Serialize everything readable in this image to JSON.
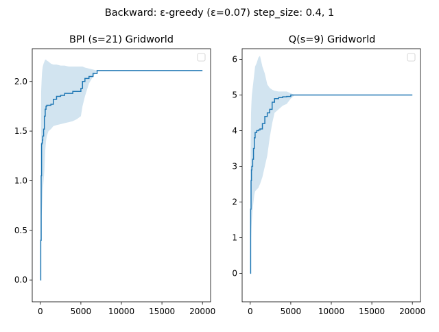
{
  "figure": {
    "suptitle": "Backward: ε-greedy (ε=0.07) step_size: 0.4, 1"
  },
  "colors": {
    "line": "#1f77b4",
    "band": "#1f77b4",
    "axes": "#000000",
    "background": "#ffffff"
  },
  "chart_data": [
    {
      "type": "line",
      "title": "BPI (s=21) Gridworld",
      "xlabel": "",
      "ylabel": "",
      "xlim": [
        -1000,
        21000
      ],
      "ylim": [
        -0.22,
        2.33
      ],
      "xticks": [
        0,
        5000,
        10000,
        15000,
        20000
      ],
      "yticks": [
        0.0,
        0.5,
        1.0,
        1.5,
        2.0
      ],
      "xtick_labels": [
        "0",
        "5000",
        "10000",
        "15000",
        "20000"
      ],
      "ytick_labels": [
        "0.0",
        "0.5",
        "1.0",
        "1.5",
        "2.0"
      ],
      "legend": "top-right (empty)",
      "grid": false,
      "series": [
        {
          "x": [
            0,
            50,
            100,
            150,
            200,
            250,
            300,
            400,
            500,
            600,
            700,
            800,
            1000,
            1300,
            1600,
            2000,
            2500,
            3000,
            3500,
            4000,
            4500,
            5000,
            5200,
            5500,
            6000,
            6500,
            7000,
            8000,
            10000,
            12000,
            15000,
            18000,
            20000
          ],
          "y": [
            0.0,
            0.4,
            1.05,
            1.37,
            1.38,
            1.41,
            1.45,
            1.52,
            1.65,
            1.72,
            1.75,
            1.76,
            1.76,
            1.77,
            1.82,
            1.85,
            1.86,
            1.88,
            1.88,
            1.9,
            1.9,
            1.93,
            2.0,
            2.03,
            2.05,
            2.08,
            2.11,
            2.11,
            2.11,
            2.11,
            2.11,
            2.11,
            2.11
          ],
          "lower": [
            0.0,
            0.3,
            0.58,
            0.65,
            0.72,
            0.8,
            0.9,
            1.0,
            1.1,
            1.3,
            1.4,
            1.45,
            1.5,
            1.52,
            1.55,
            1.56,
            1.57,
            1.58,
            1.59,
            1.6,
            1.62,
            1.65,
            1.75,
            1.85,
            1.98,
            2.05,
            2.11,
            2.11,
            2.11,
            2.11,
            2.11,
            2.11,
            2.11
          ],
          "upper": [
            0.0,
            0.9,
            1.9,
            2.0,
            2.08,
            2.12,
            2.15,
            2.18,
            2.2,
            2.22,
            2.22,
            2.21,
            2.2,
            2.18,
            2.17,
            2.17,
            2.16,
            2.16,
            2.15,
            2.15,
            2.15,
            2.15,
            2.15,
            2.14,
            2.13,
            2.12,
            2.11,
            2.11,
            2.11,
            2.11,
            2.11,
            2.11,
            2.11
          ]
        }
      ]
    },
    {
      "type": "line",
      "title": "Q(s=9) Gridworld",
      "xlabel": "",
      "ylabel": "",
      "xlim": [
        -1000,
        21000
      ],
      "ylim": [
        -0.8,
        6.3
      ],
      "xticks": [
        0,
        5000,
        10000,
        15000,
        20000
      ],
      "yticks": [
        0,
        1,
        2,
        3,
        4,
        5,
        6
      ],
      "xtick_labels": [
        "0",
        "5000",
        "10000",
        "15000",
        "20000"
      ],
      "ytick_labels": [
        "0",
        "1",
        "2",
        "3",
        "4",
        "5",
        "6"
      ],
      "legend": "top-right (empty)",
      "grid": false,
      "series": [
        {
          "x": [
            0,
            50,
            100,
            150,
            200,
            300,
            400,
            500,
            600,
            800,
            1000,
            1200,
            1500,
            1800,
            2100,
            2400,
            2700,
            3000,
            3500,
            4000,
            4500,
            5000,
            5500,
            6000,
            8000,
            10000,
            15000,
            20000
          ],
          "y": [
            0.0,
            1.8,
            2.6,
            2.9,
            3.0,
            3.2,
            3.5,
            3.8,
            3.95,
            4.0,
            4.02,
            4.05,
            4.2,
            4.4,
            4.5,
            4.6,
            4.8,
            4.9,
            4.93,
            4.95,
            4.96,
            5.0,
            5.0,
            5.0,
            5.0,
            5.0,
            5.0,
            5.0
          ],
          "lower": [
            0.0,
            0.5,
            1.0,
            1.3,
            1.5,
            1.8,
            2.0,
            2.2,
            2.3,
            2.35,
            2.4,
            2.5,
            2.7,
            3.0,
            3.3,
            3.8,
            4.2,
            4.5,
            4.6,
            4.7,
            4.75,
            4.9,
            5.0,
            5.0,
            5.0,
            5.0,
            5.0,
            5.0
          ],
          "upper": [
            0.0,
            3.5,
            4.5,
            4.8,
            5.0,
            5.2,
            5.4,
            5.6,
            5.8,
            5.9,
            6.05,
            6.1,
            5.8,
            5.6,
            5.3,
            5.2,
            5.15,
            5.12,
            5.1,
            5.1,
            5.1,
            5.05,
            5.0,
            5.0,
            5.0,
            5.0,
            5.0,
            5.0
          ]
        }
      ]
    }
  ]
}
